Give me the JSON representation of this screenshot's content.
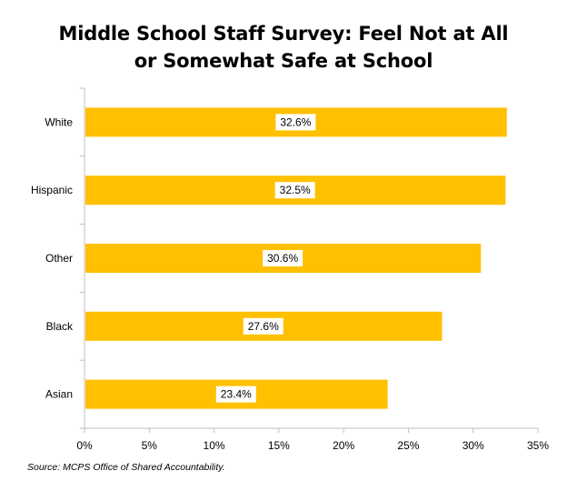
{
  "chart_data": {
    "type": "bar",
    "orientation": "horizontal",
    "title_line1": "Middle School Staff Survey: Feel Not at All",
    "title_line2": "or Somewhat Safe at School",
    "categories": [
      "White",
      "Hispanic",
      "Other",
      "Black",
      "Asian"
    ],
    "values": [
      32.6,
      32.5,
      30.6,
      27.6,
      23.4
    ],
    "data_labels": [
      "32.6%",
      "32.5%",
      "30.6%",
      "27.6%",
      "23.4%"
    ],
    "xlim": [
      0,
      35
    ],
    "xticks": [
      0,
      5,
      10,
      15,
      20,
      25,
      30,
      35
    ],
    "xtick_labels": [
      "0%",
      "5%",
      "10%",
      "15%",
      "20%",
      "25%",
      "30%",
      "35%"
    ],
    "bar_color": "#FFC000",
    "grid": false,
    "legend": "none",
    "source": "Source: MCPS Office of Shared Accountability."
  }
}
